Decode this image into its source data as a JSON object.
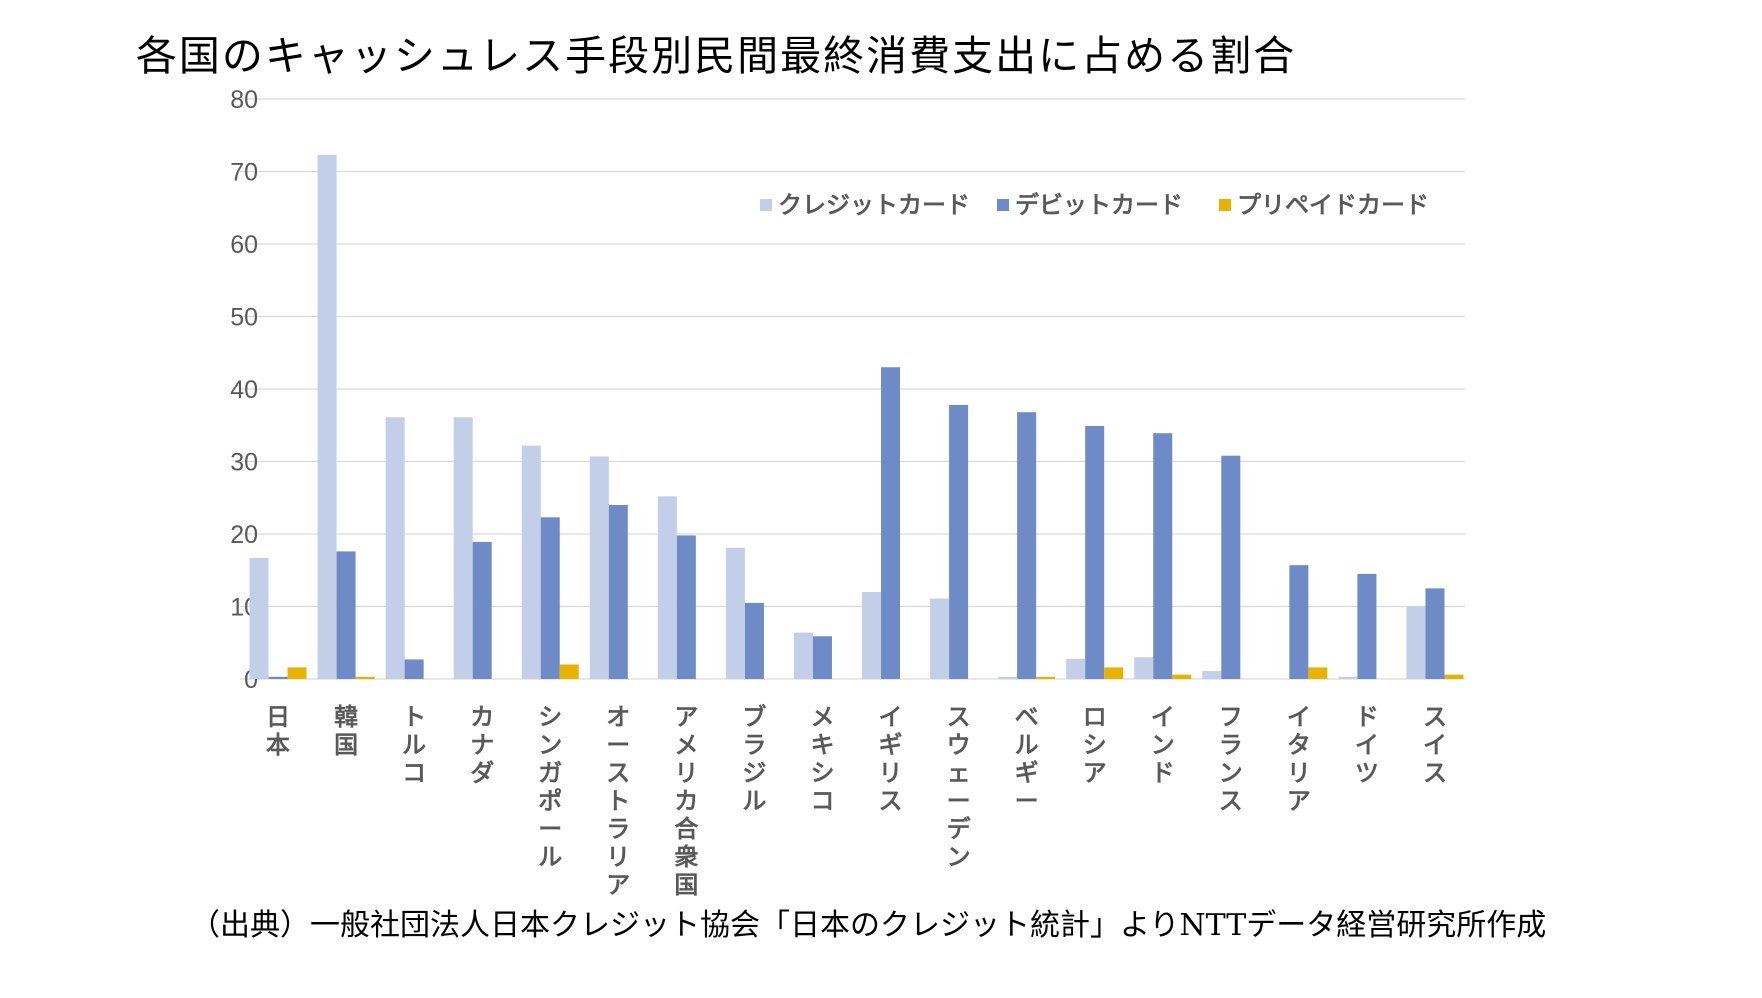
{
  "title": "各国のキャッシュレス手段別民間最終消費支出に占める割合",
  "source": "（出典）一般社団法人日本クレジット協会「日本のクレジット統計」よりNTTデータ経営研究所作成",
  "colors": {
    "credit": "#C3CFE8",
    "debit": "#6E8AC7",
    "prepaid": "#E8B300",
    "grid": "#D9D9D9",
    "text": "#595959"
  },
  "chart_data": {
    "type": "bar",
    "title": "各国のキャッシュレス手段別民間最終消費支出に占める割合",
    "xlabel": "",
    "ylabel": "",
    "ylim": [
      0,
      80
    ],
    "yticks": [
      0,
      10,
      20,
      30,
      40,
      50,
      60,
      70,
      80
    ],
    "grid": true,
    "legend_position": "top-right",
    "categories": [
      "日本",
      "韓国",
      "トルコ",
      "カナダ",
      "シンガポール",
      "オーストラリア",
      "アメリカ合衆国",
      "ブラジル",
      "メキシコ",
      "イギリス",
      "スウェーデン",
      "ベルギー",
      "ロシア",
      "インド",
      "フランス",
      "イタリア",
      "ドイツ",
      "スイス"
    ],
    "series": [
      {
        "name": "クレジットカード",
        "values": [
          16.7,
          72.3,
          36.1,
          36.1,
          32.2,
          30.7,
          25.2,
          18.1,
          6.4,
          12.0,
          11.1,
          0.3,
          2.8,
          3.0,
          1.1,
          0.0,
          0.3,
          10.0
        ]
      },
      {
        "name": "デビットカード",
        "values": [
          0.3,
          17.6,
          2.7,
          18.9,
          22.3,
          24.0,
          19.8,
          10.5,
          5.9,
          43.0,
          37.8,
          36.8,
          34.9,
          33.9,
          30.8,
          15.7,
          14.5,
          12.5
        ]
      },
      {
        "name": "プリペイドカード",
        "values": [
          1.6,
          0.3,
          0.0,
          0.0,
          2.0,
          0.0,
          0.0,
          0.0,
          0.0,
          0.0,
          0.0,
          0.3,
          1.6,
          0.6,
          0.0,
          1.6,
          0.0,
          0.6
        ]
      }
    ]
  }
}
